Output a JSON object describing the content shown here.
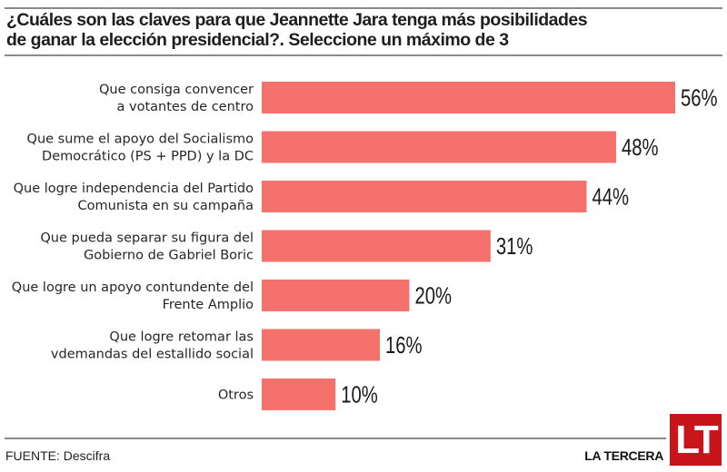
{
  "chart_data": {
    "type": "bar",
    "orientation": "horizontal",
    "title": "¿Cuáles son las claves para que Jeannette Jara tenga más posibilidades de ganar la elección presidencial?. Seleccione un máximo de 3",
    "title_lines": [
      "¿Cuáles son las claves para que Jeannette Jara tenga más posibilidades",
      "de ganar la elección presidencial?. Seleccione un máximo de 3"
    ],
    "categories": [
      [
        "Que consiga convencer",
        "a votantes de centro"
      ],
      [
        "Que sume el apoyo del Socialismo",
        "Democrático (PS + PPD) y la DC"
      ],
      [
        "Que logre independencia del Partido",
        "Comunista en su campaña"
      ],
      [
        "Que pueda separar su figura del",
        "Gobierno de Gabriel Boric"
      ],
      [
        "Que logre un apoyo contundente del",
        "Frente Amplio"
      ],
      [
        "Que logre retomar las",
        "vdemandas del estallido social"
      ],
      [
        "Otros"
      ]
    ],
    "values": [
      56,
      48,
      44,
      31,
      20,
      16,
      10
    ],
    "value_labels": [
      "56%",
      "48%",
      "44%",
      "31%",
      "20%",
      "16%",
      "10%"
    ],
    "unit": "%",
    "xlim": [
      0,
      56
    ],
    "xlabel": "",
    "ylabel": "",
    "grid": false,
    "legend": "none",
    "bar_color": "#f4716c"
  },
  "footer": {
    "source": "FUENTE: Descifra",
    "brand": "LA TERCERA",
    "logo_text": "LT",
    "logo_color": "#c8141b"
  }
}
